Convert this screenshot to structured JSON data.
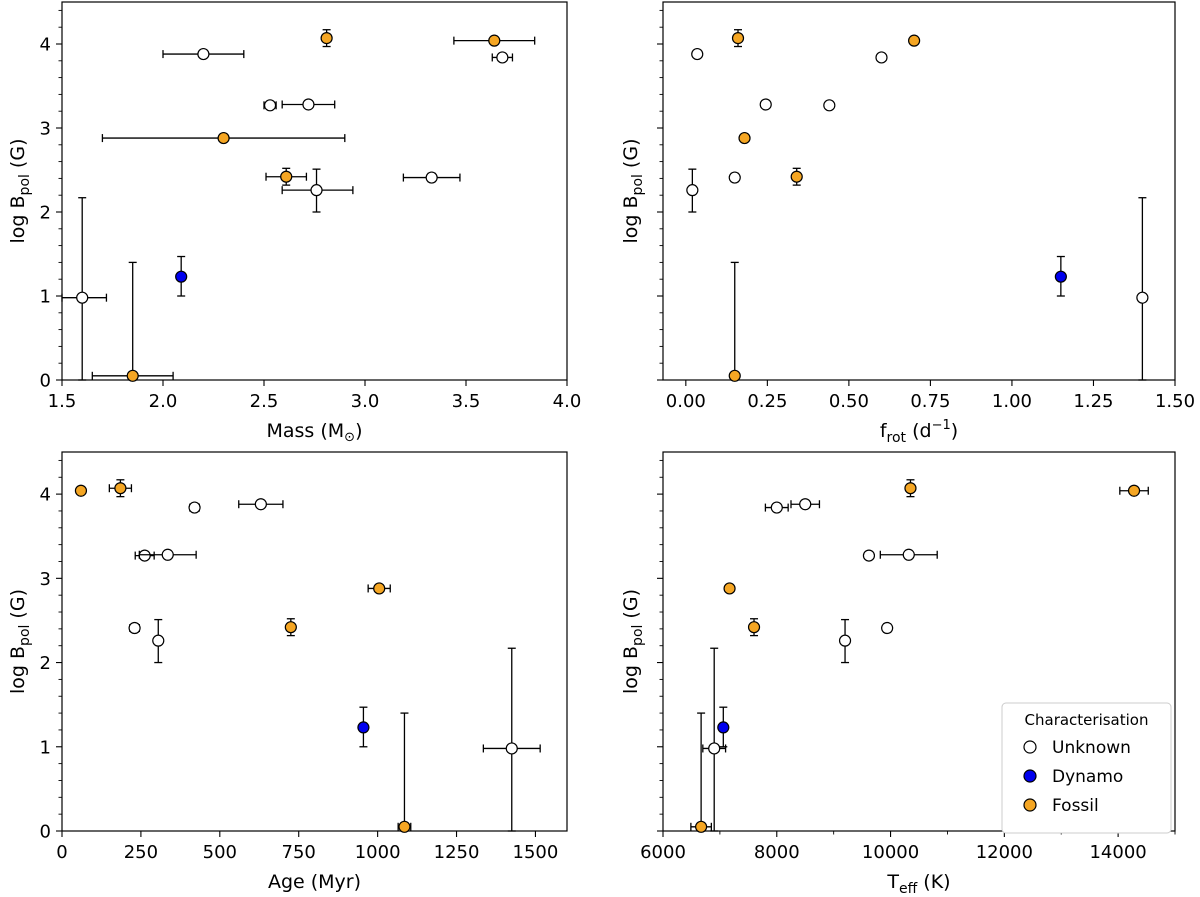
{
  "legend": {
    "title": "Characterisation",
    "placement": "bottom-right of fourth panel",
    "entries": [
      {
        "label": "Unknown",
        "category": "unknown"
      },
      {
        "label": "Dynamo",
        "category": "dynamo"
      },
      {
        "label": "Fossil",
        "category": "fossil"
      }
    ]
  },
  "colors": {
    "unknown": "#ffffff",
    "dynamo": "#0000ee",
    "fossil": "#f5a623",
    "edge": "#000000"
  },
  "chart_data": [
    {
      "type": "scatter",
      "xlabel": {
        "base": "Mass (M",
        "tail": ")",
        "symbol": "⊙"
      },
      "ylabel": {
        "base": "log B",
        "sub": "pol",
        "tail": " (G)"
      },
      "xlim": [
        1.5,
        4.0
      ],
      "ylim": [
        0,
        4.5
      ],
      "xticks": [
        1.5,
        2.0,
        2.5,
        3.0,
        3.5,
        4.0
      ],
      "xtick_labels": [
        "1.5",
        "2.0",
        "2.5",
        "3.0",
        "3.5",
        "4.0"
      ],
      "xminor": [],
      "yticks": [
        0,
        1,
        2,
        3,
        4
      ],
      "ytick_labels": [
        "0",
        "1",
        "2",
        "3",
        "4"
      ],
      "ytick_labels_shown": true,
      "points": [
        {
          "x": 1.6,
          "xlo": 0.1,
          "xhi": 0.12,
          "y": 0.98,
          "ylo": 0.98,
          "yhi": 1.19,
          "cat": "unknown"
        },
        {
          "x": 1.85,
          "xlo": 0.2,
          "xhi": 0.2,
          "y": 0.05,
          "ylo": 0.05,
          "yhi": 1.35,
          "cat": "fossil"
        },
        {
          "x": 2.09,
          "xlo": 0,
          "xhi": 0,
          "y": 1.23,
          "ylo": 0.23,
          "yhi": 0.24,
          "cat": "dynamo"
        },
        {
          "x": 2.2,
          "xlo": 0.2,
          "xhi": 0.2,
          "y": 3.88,
          "ylo": 0,
          "yhi": 0,
          "cat": "unknown"
        },
        {
          "x": 2.3,
          "xlo": 0.6,
          "xhi": 0.6,
          "y": 2.88,
          "ylo": 0,
          "yhi": 0,
          "cat": "fossil"
        },
        {
          "x": 2.53,
          "xlo": 0.03,
          "xhi": 0.03,
          "y": 3.27,
          "ylo": 0,
          "yhi": 0,
          "cat": "unknown"
        },
        {
          "x": 2.61,
          "xlo": 0.1,
          "xhi": 0.1,
          "y": 2.42,
          "ylo": 0.1,
          "yhi": 0.1,
          "cat": "fossil"
        },
        {
          "x": 2.72,
          "xlo": 0.13,
          "xhi": 0.13,
          "y": 3.28,
          "ylo": 0,
          "yhi": 0,
          "cat": "unknown"
        },
        {
          "x": 2.76,
          "xlo": 0.17,
          "xhi": 0.18,
          "y": 2.26,
          "ylo": 0.26,
          "yhi": 0.25,
          "cat": "unknown"
        },
        {
          "x": 2.81,
          "xlo": 0.02,
          "xhi": 0.02,
          "y": 4.07,
          "ylo": 0.1,
          "yhi": 0.1,
          "cat": "fossil"
        },
        {
          "x": 3.33,
          "xlo": 0.14,
          "xhi": 0.14,
          "y": 2.41,
          "ylo": 0.05,
          "yhi": 0.05,
          "cat": "unknown"
        },
        {
          "x": 3.64,
          "xlo": 0.2,
          "xhi": 0.2,
          "y": 4.04,
          "ylo": 0,
          "yhi": 0,
          "cat": "fossil"
        },
        {
          "x": 3.68,
          "xlo": 0.05,
          "xhi": 0.05,
          "y": 3.84,
          "ylo": 0,
          "yhi": 0,
          "cat": "unknown"
        }
      ]
    },
    {
      "type": "scatter",
      "xlabel": {
        "base": "f",
        "sub": "rot",
        "tail": " (d",
        "sup": "−1",
        "tail2": ")"
      },
      "ylabel": {
        "base": "log B",
        "sub": "pol",
        "tail": " (G)"
      },
      "xlim": [
        -0.07,
        1.5
      ],
      "ylim": [
        0,
        4.5
      ],
      "xticks": [
        0.0,
        0.25,
        0.5,
        0.75,
        1.0,
        1.25,
        1.5
      ],
      "xtick_labels": [
        "0.00",
        "0.25",
        "0.50",
        "0.75",
        "1.00",
        "1.25",
        "1.50"
      ],
      "xminor": [],
      "yticks": [
        0,
        1,
        2,
        3,
        4
      ],
      "ytick_labels": [
        "0",
        "1",
        "2",
        "3",
        "4"
      ],
      "ytick_labels_shown": false,
      "points": [
        {
          "x": 0.02,
          "xlo": 0,
          "xhi": 0,
          "y": 2.26,
          "ylo": 0.26,
          "yhi": 0.25,
          "cat": "unknown"
        },
        {
          "x": 0.035,
          "xlo": 0,
          "xhi": 0,
          "y": 3.88,
          "ylo": 0,
          "yhi": 0,
          "cat": "unknown"
        },
        {
          "x": 0.15,
          "xlo": 0,
          "xhi": 0,
          "y": 2.41,
          "ylo": 0.05,
          "yhi": 0.05,
          "cat": "unknown"
        },
        {
          "x": 0.15,
          "xlo": 0,
          "xhi": 0,
          "y": 0.05,
          "ylo": 0.05,
          "yhi": 1.35,
          "cat": "fossil"
        },
        {
          "x": 0.16,
          "xlo": 0,
          "xhi": 0,
          "y": 4.07,
          "ylo": 0.1,
          "yhi": 0.1,
          "cat": "fossil"
        },
        {
          "x": 0.18,
          "xlo": 0,
          "xhi": 0,
          "y": 2.88,
          "ylo": 0,
          "yhi": 0,
          "cat": "fossil"
        },
        {
          "x": 0.245,
          "xlo": 0,
          "xhi": 0,
          "y": 3.28,
          "ylo": 0,
          "yhi": 0,
          "cat": "unknown"
        },
        {
          "x": 0.34,
          "xlo": 0,
          "xhi": 0,
          "y": 2.42,
          "ylo": 0.1,
          "yhi": 0.1,
          "cat": "fossil"
        },
        {
          "x": 0.44,
          "xlo": 0,
          "xhi": 0,
          "y": 3.27,
          "ylo": 0,
          "yhi": 0,
          "cat": "unknown"
        },
        {
          "x": 0.6,
          "xlo": 0,
          "xhi": 0,
          "y": 3.84,
          "ylo": 0,
          "yhi": 0,
          "cat": "unknown"
        },
        {
          "x": 0.7,
          "xlo": 0,
          "xhi": 0,
          "y": 4.04,
          "ylo": 0,
          "yhi": 0,
          "cat": "fossil"
        },
        {
          "x": 1.15,
          "xlo": 0,
          "xhi": 0,
          "y": 1.23,
          "ylo": 0.23,
          "yhi": 0.24,
          "cat": "dynamo"
        },
        {
          "x": 1.4,
          "xlo": 0,
          "xhi": 0,
          "y": 0.98,
          "ylo": 0.98,
          "yhi": 1.19,
          "cat": "unknown"
        }
      ]
    },
    {
      "type": "scatter",
      "xlabel": {
        "base": "Age (Myr)"
      },
      "ylabel": {
        "base": "log B",
        "sub": "pol",
        "tail": " (G)"
      },
      "xlim": [
        0,
        1600
      ],
      "ylim": [
        0,
        4.5
      ],
      "xticks": [
        0,
        250,
        500,
        750,
        1000,
        1250,
        1500
      ],
      "xtick_labels": [
        "0",
        "250",
        "500",
        "750",
        "1000",
        "1250",
        "1500"
      ],
      "xminor": [],
      "yticks": [
        0,
        1,
        2,
        3,
        4
      ],
      "ytick_labels": [
        "0",
        "1",
        "2",
        "3",
        "4"
      ],
      "ytick_labels_shown": true,
      "points": [
        {
          "x": 60,
          "xlo": 10,
          "xhi": 10,
          "y": 4.04,
          "ylo": 0,
          "yhi": 0,
          "cat": "fossil"
        },
        {
          "x": 185,
          "xlo": 35,
          "xhi": 35,
          "y": 4.07,
          "ylo": 0.1,
          "yhi": 0.1,
          "cat": "fossil"
        },
        {
          "x": 230,
          "xlo": 15,
          "xhi": 15,
          "y": 2.41,
          "ylo": 0.05,
          "yhi": 0.05,
          "cat": "unknown"
        },
        {
          "x": 262,
          "xlo": 30,
          "xhi": 30,
          "y": 3.27,
          "ylo": 0,
          "yhi": 0,
          "cat": "unknown"
        },
        {
          "x": 305,
          "xlo": 0,
          "xhi": 0,
          "y": 2.26,
          "ylo": 0.26,
          "yhi": 0.25,
          "cat": "unknown"
        },
        {
          "x": 335,
          "xlo": 90,
          "xhi": 90,
          "y": 3.28,
          "ylo": 0,
          "yhi": 0,
          "cat": "unknown"
        },
        {
          "x": 420,
          "xlo": 15,
          "xhi": 15,
          "y": 3.84,
          "ylo": 0,
          "yhi": 0,
          "cat": "unknown"
        },
        {
          "x": 630,
          "xlo": 70,
          "xhi": 70,
          "y": 3.88,
          "ylo": 0,
          "yhi": 0,
          "cat": "unknown"
        },
        {
          "x": 725,
          "xlo": 0,
          "xhi": 0,
          "y": 2.42,
          "ylo": 0.1,
          "yhi": 0.1,
          "cat": "fossil"
        },
        {
          "x": 955,
          "xlo": 0,
          "xhi": 0,
          "y": 1.23,
          "ylo": 0.23,
          "yhi": 0.24,
          "cat": "dynamo"
        },
        {
          "x": 1005,
          "xlo": 35,
          "xhi": 35,
          "y": 2.88,
          "ylo": 0,
          "yhi": 0,
          "cat": "fossil"
        },
        {
          "x": 1085,
          "xlo": 20,
          "xhi": 20,
          "y": 0.05,
          "ylo": 0.05,
          "yhi": 1.35,
          "cat": "fossil"
        },
        {
          "x": 1425,
          "xlo": 90,
          "xhi": 90,
          "y": 0.98,
          "ylo": 0.98,
          "yhi": 1.19,
          "cat": "unknown"
        }
      ]
    },
    {
      "type": "scatter",
      "xlabel": {
        "base": "T",
        "sub": "eff",
        "tail": " (K)"
      },
      "ylabel": {
        "base": "log B",
        "sub": "pol",
        "tail": " (G)"
      },
      "xlim": [
        6000,
        15000
      ],
      "ylim": [
        0,
        4.5
      ],
      "xticks": [
        6000,
        8000,
        10000,
        12000,
        14000
      ],
      "xtick_labels": [
        "6000",
        "8000",
        "10000",
        "12000",
        "14000"
      ],
      "xminor": [
        7000,
        9000,
        11000,
        13000,
        15000
      ],
      "yticks": [
        0,
        1,
        2,
        3,
        4
      ],
      "ytick_labels": [
        "0",
        "1",
        "2",
        "3",
        "4"
      ],
      "ytick_labels_shown": false,
      "points": [
        {
          "x": 6670,
          "xlo": 180,
          "xhi": 180,
          "y": 0.05,
          "ylo": 0.05,
          "yhi": 1.35,
          "cat": "fossil"
        },
        {
          "x": 6900,
          "xlo": 200,
          "xhi": 200,
          "y": 0.98,
          "ylo": 0.98,
          "yhi": 1.19,
          "cat": "unknown"
        },
        {
          "x": 7060,
          "xlo": 0,
          "xhi": 0,
          "y": 1.23,
          "ylo": 0.23,
          "yhi": 0.24,
          "cat": "dynamo"
        },
        {
          "x": 7170,
          "xlo": 0,
          "xhi": 0,
          "y": 2.88,
          "ylo": 0,
          "yhi": 0,
          "cat": "fossil"
        },
        {
          "x": 7600,
          "xlo": 0,
          "xhi": 0,
          "y": 2.42,
          "ylo": 0.1,
          "yhi": 0.1,
          "cat": "fossil"
        },
        {
          "x": 8000,
          "xlo": 200,
          "xhi": 200,
          "y": 3.84,
          "ylo": 0,
          "yhi": 0,
          "cat": "unknown"
        },
        {
          "x": 8500,
          "xlo": 250,
          "xhi": 250,
          "y": 3.88,
          "ylo": 0,
          "yhi": 0,
          "cat": "unknown"
        },
        {
          "x": 9200,
          "xlo": 0,
          "xhi": 0,
          "y": 2.26,
          "ylo": 0.26,
          "yhi": 0.25,
          "cat": "unknown"
        },
        {
          "x": 9620,
          "xlo": 0,
          "xhi": 0,
          "y": 3.27,
          "ylo": 0,
          "yhi": 0,
          "cat": "unknown"
        },
        {
          "x": 9940,
          "xlo": 0,
          "xhi": 0,
          "y": 2.41,
          "ylo": 0.05,
          "yhi": 0.05,
          "cat": "unknown"
        },
        {
          "x": 10320,
          "xlo": 500,
          "xhi": 500,
          "y": 3.28,
          "ylo": 0,
          "yhi": 0,
          "cat": "unknown"
        },
        {
          "x": 10350,
          "xlo": 0,
          "xhi": 0,
          "y": 4.07,
          "ylo": 0.1,
          "yhi": 0.1,
          "cat": "fossil"
        },
        {
          "x": 14280,
          "xlo": 250,
          "xhi": 250,
          "y": 4.04,
          "ylo": 0,
          "yhi": 0,
          "cat": "fossil"
        }
      ]
    }
  ]
}
